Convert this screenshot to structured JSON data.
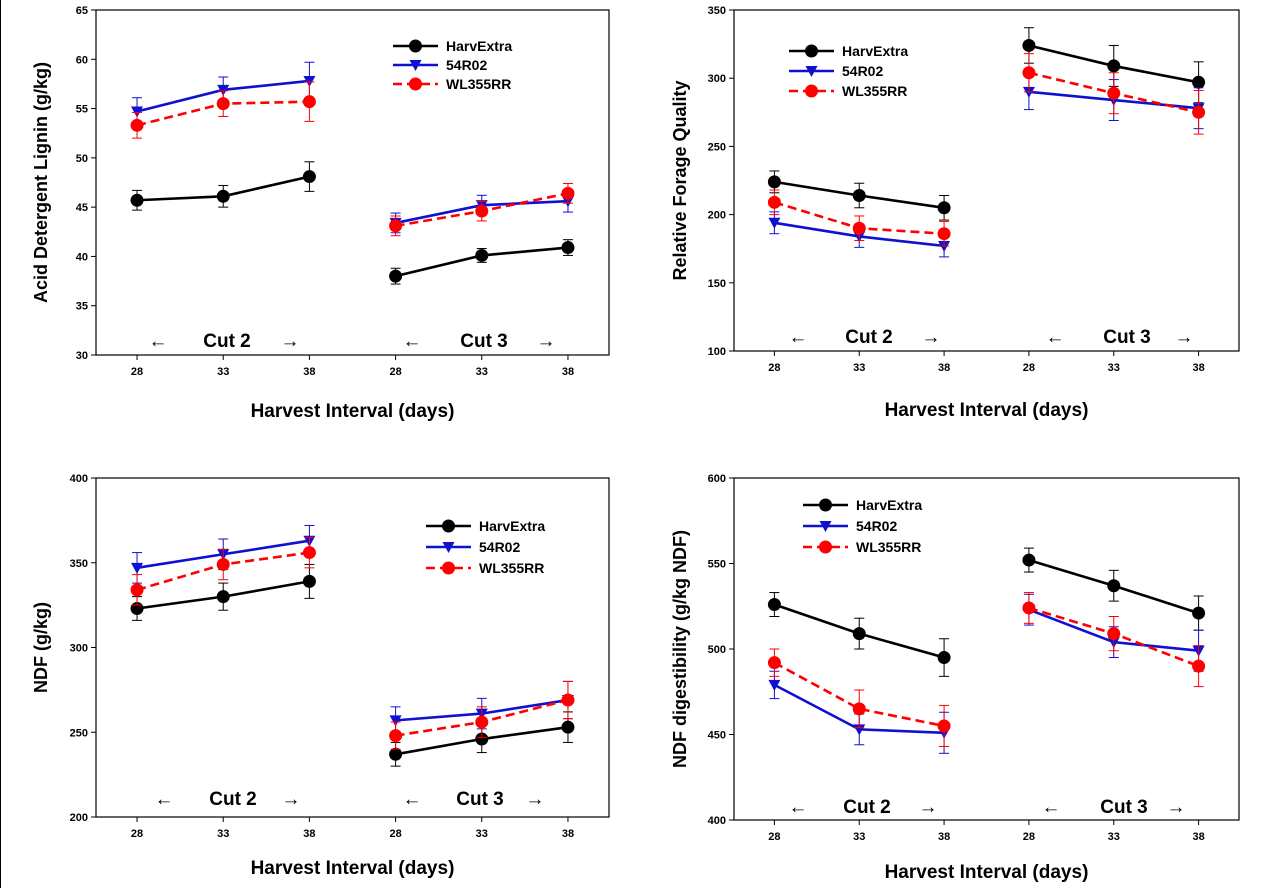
{
  "colors": {
    "HarvExtra": "#000000",
    "54R02": "#1010d0",
    "WL355RR": "#ff0000"
  },
  "chart_data": [
    {
      "type": "line",
      "ylabel": "Acid Detergent Lignin (g/kg)",
      "xlabel": "Harvest Interval (days)",
      "x_ticks": [
        "28",
        "33",
        "38",
        "28",
        "33",
        "38"
      ],
      "groups": [
        {
          "label": "Cut 2",
          "arrow_left": "←",
          "arrow_right": "→"
        },
        {
          "label": "Cut 3",
          "arrow_left": "←",
          "arrow_right": "→"
        }
      ],
      "ylim": [
        30,
        65
      ],
      "y_ticks": [
        30,
        35,
        40,
        45,
        50,
        55,
        60,
        65
      ],
      "legend": {
        "position": "top-right"
      },
      "series": [
        {
          "name": "HarvExtra",
          "style": "solid",
          "marker": "circle",
          "values": [
            [
              45.7,
              46.1,
              48.1
            ],
            [
              38.0,
              40.1,
              40.9
            ]
          ],
          "errors": [
            [
              1.0,
              1.1,
              1.5
            ],
            [
              0.8,
              0.7,
              0.8
            ]
          ]
        },
        {
          "name": "54R02",
          "style": "solid",
          "marker": "triangle-down",
          "values": [
            [
              54.7,
              56.9,
              57.8
            ],
            [
              43.4,
              45.2,
              45.6
            ]
          ],
          "errors": [
            [
              1.4,
              1.3,
              1.9
            ],
            [
              1.0,
              1.0,
              1.1
            ]
          ]
        },
        {
          "name": "WL355RR",
          "style": "dashed",
          "marker": "circle",
          "values": [
            [
              53.3,
              55.5,
              55.7
            ],
            [
              43.1,
              44.6,
              46.4
            ]
          ],
          "errors": [
            [
              1.3,
              1.3,
              2.0
            ],
            [
              1.0,
              1.0,
              1.0
            ]
          ]
        }
      ]
    },
    {
      "type": "line",
      "ylabel": "Relative Forage Quality",
      "xlabel": "Harvest Interval (days)",
      "x_ticks": [
        "28",
        "33",
        "38",
        "28",
        "33",
        "38"
      ],
      "groups": [
        {
          "label": "Cut 2",
          "arrow_left": "←",
          "arrow_right": "→"
        },
        {
          "label": "Cut 3",
          "arrow_left": "←",
          "arrow_right": "→"
        }
      ],
      "ylim": [
        100,
        350
      ],
      "y_ticks": [
        100,
        150,
        200,
        250,
        300,
        350
      ],
      "legend": {
        "position": "top-left"
      },
      "series": [
        {
          "name": "HarvExtra",
          "style": "solid",
          "marker": "circle",
          "values": [
            [
              224,
              214,
              205
            ],
            [
              324,
              309,
              297
            ]
          ],
          "errors": [
            [
              8,
              9,
              9
            ],
            [
              13,
              15,
              15
            ]
          ]
        },
        {
          "name": "54R02",
          "style": "solid",
          "marker": "triangle-down",
          "values": [
            [
              194,
              184,
              177
            ],
            [
              290,
              284,
              278
            ]
          ],
          "errors": [
            [
              8,
              8,
              8
            ],
            [
              13,
              15,
              15
            ]
          ]
        },
        {
          "name": "WL355RR",
          "style": "dashed",
          "marker": "circle",
          "values": [
            [
              209,
              190,
              186
            ],
            [
              304,
              289,
              275
            ]
          ],
          "errors": [
            [
              9,
              9,
              9
            ],
            [
              14,
              15,
              16
            ]
          ]
        }
      ]
    },
    {
      "type": "line",
      "ylabel": "NDF (g/kg)",
      "xlabel": "Harvest Interval (days)",
      "x_ticks": [
        "28",
        "33",
        "38",
        "28",
        "33",
        "38"
      ],
      "groups": [
        {
          "label": "Cut 2",
          "arrow_left": "←",
          "arrow_right": "→"
        },
        {
          "label": "Cut 3",
          "arrow_left": "←",
          "arrow_right": "→"
        }
      ],
      "ylim": [
        200,
        400
      ],
      "y_ticks": [
        200,
        250,
        300,
        350,
        400
      ],
      "legend": {
        "position": "top-right"
      },
      "series": [
        {
          "name": "HarvExtra",
          "style": "solid",
          "marker": "circle",
          "values": [
            [
              323,
              330,
              339
            ],
            [
              237,
              246,
              253
            ]
          ],
          "errors": [
            [
              7,
              8,
              10
            ],
            [
              7,
              8,
              9
            ]
          ]
        },
        {
          "name": "54R02",
          "style": "solid",
          "marker": "triangle-down",
          "values": [
            [
              347,
              355,
              363
            ],
            [
              257,
              261,
              269
            ]
          ],
          "errors": [
            [
              9,
              9,
              9
            ],
            [
              8,
              9,
              11
            ]
          ]
        },
        {
          "name": "WL355RR",
          "style": "dashed",
          "marker": "circle",
          "values": [
            [
              334,
              349,
              356
            ],
            [
              248,
              256,
              269
            ]
          ],
          "errors": [
            [
              9,
              9,
              9
            ],
            [
              8,
              9,
              11
            ]
          ]
        }
      ]
    },
    {
      "type": "line",
      "ylabel": "NDF digestibility (g/kg NDF)",
      "xlabel": "Harvest Interval (days)",
      "x_ticks": [
        "28",
        "33",
        "38",
        "28",
        "33",
        "38"
      ],
      "groups": [
        {
          "label": "Cut 2",
          "arrow_left": "←",
          "arrow_right": "→"
        },
        {
          "label": "Cut 3",
          "arrow_left": "←",
          "arrow_right": "→"
        }
      ],
      "ylim": [
        400,
        600
      ],
      "y_ticks": [
        400,
        450,
        500,
        550,
        600
      ],
      "legend": {
        "position": "top-left"
      },
      "series": [
        {
          "name": "HarvExtra",
          "style": "solid",
          "marker": "circle",
          "values": [
            [
              526,
              509,
              495
            ],
            [
              552,
              537,
              521
            ]
          ],
          "errors": [
            [
              7,
              9,
              11
            ],
            [
              7,
              9,
              10
            ]
          ]
        },
        {
          "name": "54R02",
          "style": "solid",
          "marker": "triangle-down",
          "values": [
            [
              479,
              453,
              451
            ],
            [
              523,
              504,
              499
            ]
          ],
          "errors": [
            [
              8,
              9,
              12
            ],
            [
              9,
              9,
              12
            ]
          ]
        },
        {
          "name": "WL355RR",
          "style": "dashed",
          "marker": "circle",
          "values": [
            [
              492,
              465,
              455
            ],
            [
              524,
              509,
              490
            ]
          ],
          "errors": [
            [
              8,
              11,
              12
            ],
            [
              9,
              10,
              12
            ]
          ]
        }
      ]
    }
  ]
}
